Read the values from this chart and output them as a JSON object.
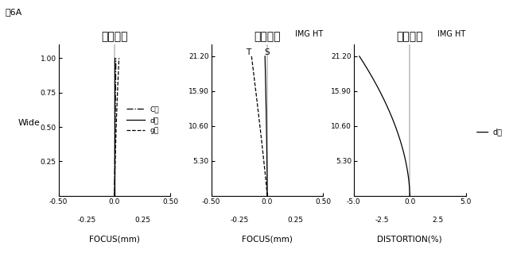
{
  "fig_label": "図6A",
  "wide_label": "Wide",
  "titles": [
    "球面収差",
    "非点収差",
    "歪曲収差"
  ],
  "xlabel1": "FOCUS(mm)",
  "xlabel2": "FOCUS(mm)",
  "xlabel3": "DISTORTION(%)",
  "imght_label": "IMG HT",
  "plot1_xlim": [
    -0.5,
    0.5
  ],
  "plot1_ylim": [
    0.0,
    1.1
  ],
  "plot1_yticks": [
    0.25,
    0.5,
    0.75,
    1.0
  ],
  "plot1_xticks_main": [
    -0.5,
    0.0,
    0.5
  ],
  "plot1_xticks_sub": [
    -0.25,
    0.25
  ],
  "plot2_xlim": [
    -0.5,
    0.5
  ],
  "plot2_ylim": [
    0.0,
    23.0
  ],
  "plot2_yticks": [
    5.3,
    10.6,
    15.9,
    21.2
  ],
  "plot2_xticks_main": [
    -0.5,
    0.0,
    0.5
  ],
  "plot2_xticks_sub": [
    -0.25,
    0.25
  ],
  "plot3_xlim": [
    -5.0,
    5.0
  ],
  "plot3_ylim": [
    0.0,
    23.0
  ],
  "plot3_yticks": [
    5.3,
    10.6,
    15.9,
    21.2
  ],
  "plot3_xticks_main": [
    -5.0,
    0.0,
    5.0
  ],
  "plot3_xticks_sub": [
    -2.5,
    2.5
  ],
  "legend_C": "C線",
  "legend_d": "d線",
  "legend_g": "g線",
  "T_label": "T",
  "S_label": "S",
  "d_label": "d線",
  "bg_color": "#ffffff",
  "line_color": "#000000"
}
